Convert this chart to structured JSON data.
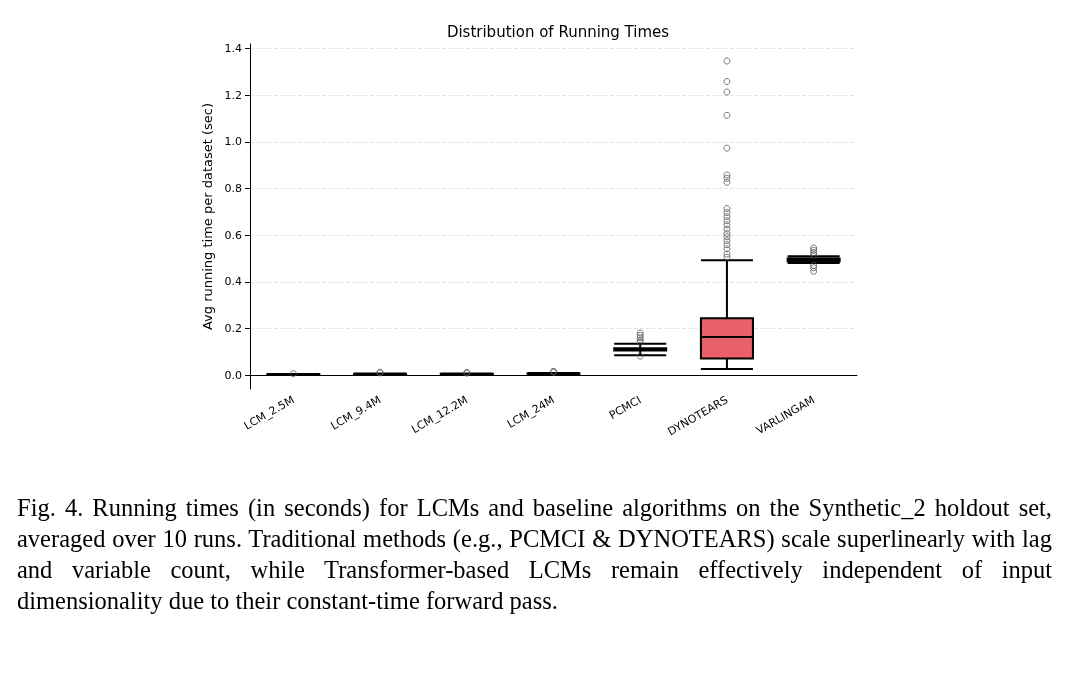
{
  "chart_data": {
    "type": "box",
    "title": "Distribution of Running Times",
    "ylabel": "Avg running time per dataset (sec)",
    "categories": [
      "LCM_2.5M",
      "LCM_9.4M",
      "LCM_12.2M",
      "LCM_24M",
      "PCMCI",
      "DYNOTEARS",
      "VARLINGAM"
    ],
    "boxes": [
      {
        "low": 0.001,
        "q1": 0.002,
        "median": 0.002,
        "q3": 0.003,
        "high": 0.004,
        "outliers": [
          0.006
        ]
      },
      {
        "low": 0.002,
        "q1": 0.003,
        "median": 0.004,
        "q3": 0.005,
        "high": 0.006,
        "outliers": [
          0.009,
          0.012
        ]
      },
      {
        "low": 0.002,
        "q1": 0.003,
        "median": 0.004,
        "q3": 0.005,
        "high": 0.006,
        "outliers": [
          0.008,
          0.011
        ]
      },
      {
        "low": 0.003,
        "q1": 0.005,
        "median": 0.006,
        "q3": 0.007,
        "high": 0.009,
        "outliers": [
          0.012,
          0.016
        ]
      },
      {
        "low": 0.085,
        "q1": 0.105,
        "median": 0.11,
        "q3": 0.115,
        "high": 0.134,
        "outliers": [
          0.14,
          0.15,
          0.16,
          0.17,
          0.18,
          0.081
        ]
      },
      {
        "low": 0.026,
        "q1": 0.071,
        "median": 0.163,
        "q3": 0.243,
        "high": 0.492,
        "outliers": [
          0.505,
          0.519,
          0.541,
          0.559,
          0.576,
          0.593,
          0.607,
          0.626,
          0.644,
          0.662,
          0.679,
          0.697,
          0.714,
          0.827,
          0.844,
          0.858,
          0.973,
          1.114,
          1.214,
          1.259,
          1.347
        ]
      },
      {
        "low": 0.481,
        "q1": 0.488,
        "median": 0.494,
        "q3": 0.5,
        "high": 0.509,
        "outliers": [
          0.515,
          0.525,
          0.535,
          0.545,
          0.47,
          0.46,
          0.445
        ]
      }
    ],
    "color": "#e8606a",
    "ylim": [
      -0.06,
      1.42
    ],
    "yticks": [
      {
        "value": 0,
        "label": "0.0"
      },
      0.2,
      0.4,
      0.6,
      0.8,
      {
        "value": 1,
        "label": "1.0"
      },
      1.2,
      1.4
    ],
    "grid": "y",
    "annotations": [
      "Fig. 4. Running times (in seconds) for LCMs and baseline algorithms on the Synthetic_2 holdout set, averaged over 10 runs. Traditional methods (e.g., PCMCI & DYNOTEARS) scale superlinearly with lag and variable count, while Transformer-based LCMs remain effectively independent of input dimensionality due to their constant-time forward pass."
    ]
  }
}
